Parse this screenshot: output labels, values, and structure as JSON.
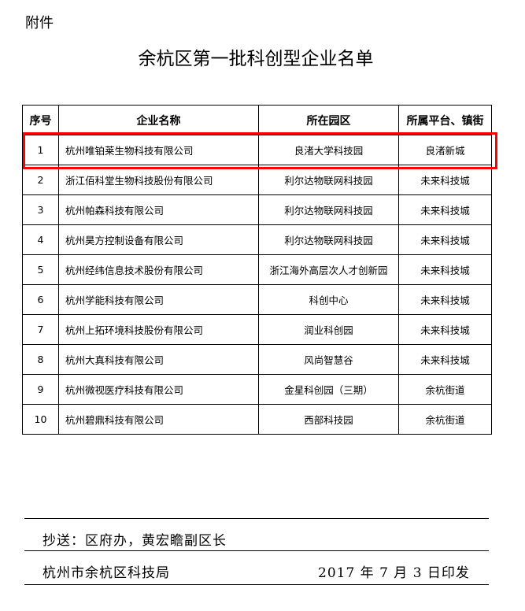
{
  "attachment_label": "附件",
  "title": "余杭区第一批科创型企业名单",
  "table": {
    "headers": [
      "序号",
      "企业名称",
      "所在园区",
      "所属平台、镇街"
    ],
    "rows": [
      {
        "no": "1",
        "name": "杭州唯铂莱生物科技有限公司",
        "park": "良渚大学科技园",
        "platform": "良渚新城",
        "highlighted": true
      },
      {
        "no": "2",
        "name": "浙江佰科堂生物科技股份有限公司",
        "park": "利尔达物联网科技园",
        "platform": "未来科技城"
      },
      {
        "no": "3",
        "name": "杭州帕森科技有限公司",
        "park": "利尔达物联网科技园",
        "platform": "未来科技城"
      },
      {
        "no": "4",
        "name": "杭州昊方控制设备有限公司",
        "park": "利尔达物联网科技园",
        "platform": "未来科技城"
      },
      {
        "no": "5",
        "name": "杭州经纬信息技术股份有限公司",
        "park": "浙江海外高层次人才创新园",
        "platform": "未来科技城"
      },
      {
        "no": "6",
        "name": "杭州学能科技有限公司",
        "park": "科创中心",
        "platform": "未来科技城"
      },
      {
        "no": "7",
        "name": "杭州上拓环境科技股份有限公司",
        "park": "润业科创园",
        "platform": "未来科技城"
      },
      {
        "no": "8",
        "name": "杭州大真科技有限公司",
        "park": "风尚智慧谷",
        "platform": "未来科技城"
      },
      {
        "no": "9",
        "name": "杭州微视医疗科技有限公司",
        "park": "金星科创园（三期）",
        "platform": "余杭街道"
      },
      {
        "no": "10",
        "name": "杭州碧鼎科技有限公司",
        "park": "西部科技园",
        "platform": "余杭街道"
      }
    ],
    "highlight_color": "#ff0000"
  },
  "footer": {
    "cc": "抄送：区府办，黄宏瞻副区长",
    "issuer": "杭州市余杭区科技局",
    "date": "2017 年 7 月 3 日印发"
  }
}
